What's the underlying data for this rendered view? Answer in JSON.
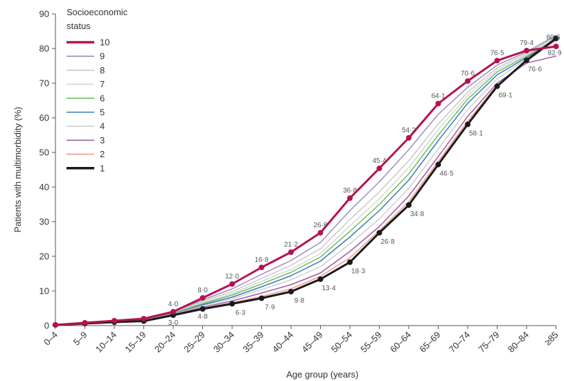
{
  "chart_data": {
    "type": "line",
    "title": "",
    "xlabel": "Age group (years)",
    "ylabel": "Patients with multimorbidity (%)",
    "ylim": [
      0,
      90
    ],
    "yticks": [
      "0",
      "10",
      "20",
      "30",
      "40",
      "50",
      "60",
      "70",
      "80",
      "90"
    ],
    "categories": [
      "0–4",
      "5–9",
      "10–14",
      "15–19",
      "20–24",
      "25–29",
      "30–34",
      "35–39",
      "40–44",
      "45–49",
      "50–54",
      "55–59",
      "60–64",
      "65–69",
      "70–74",
      "75–79",
      "80–84",
      "≥85"
    ],
    "legend": {
      "title": "Socioeconomic status",
      "title_lines": [
        "Socioeconomic",
        "status"
      ],
      "placement": "top-left"
    },
    "series": [
      {
        "name": "10",
        "color": "#b5124e",
        "values": [
          0.2,
          0.8,
          1.4,
          2.0,
          4.0,
          8.0,
          12.0,
          16.8,
          21.2,
          26.8,
          36.8,
          45.4,
          54.2,
          64.1,
          70.6,
          76.5,
          79.4,
          80.6
        ]
      },
      {
        "name": "9",
        "color": "#9b8cc4",
        "values": [
          0.2,
          0.8,
          1.4,
          2.0,
          4.0,
          7.4,
          10.6,
          14.8,
          18.8,
          24.0,
          33.2,
          41.5,
          50.8,
          61.0,
          68.8,
          75.2,
          79.0,
          83.8
        ]
      },
      {
        "name": "8",
        "color": "#c9c9c9",
        "values": [
          0.2,
          0.8,
          1.3,
          1.9,
          3.8,
          7.0,
          9.8,
          13.6,
          17.4,
          22.2,
          30.6,
          38.6,
          47.6,
          58.2,
          67.4,
          74.4,
          78.6,
          83.4
        ]
      },
      {
        "name": "7",
        "color": "#d6d6d6",
        "values": [
          0.2,
          0.8,
          1.3,
          1.8,
          3.7,
          6.6,
          9.2,
          12.8,
          16.2,
          20.8,
          28.8,
          36.6,
          45.6,
          56.6,
          66.4,
          73.8,
          78.2,
          83.0
        ]
      },
      {
        "name": "6",
        "color": "#6dbf5a",
        "values": [
          0.2,
          0.8,
          1.3,
          1.8,
          3.6,
          6.3,
          8.8,
          12.0,
          15.4,
          19.8,
          27.2,
          35.0,
          43.8,
          55.0,
          65.4,
          73.2,
          77.8,
          82.6
        ]
      },
      {
        "name": "5",
        "color": "#3b78b8",
        "values": [
          0.2,
          0.7,
          1.2,
          1.7,
          3.4,
          6.0,
          8.2,
          11.2,
          14.4,
          18.6,
          25.6,
          33.2,
          42.0,
          53.4,
          64.2,
          72.4,
          77.4,
          82.4
        ]
      },
      {
        "name": "4",
        "color": "#cfcfcf",
        "values": [
          0.2,
          0.7,
          1.2,
          1.6,
          3.3,
          5.7,
          7.7,
          10.4,
          13.2,
          17.0,
          23.6,
          30.8,
          39.6,
          51.0,
          62.4,
          71.2,
          77.0,
          82.2
        ]
      },
      {
        "name": "3",
        "color": "#a05aa8",
        "values": [
          0.2,
          0.7,
          1.1,
          1.5,
          3.2,
          5.3,
          7.1,
          9.4,
          11.8,
          15.2,
          21.4,
          28.6,
          37.4,
          48.8,
          60.4,
          70.0,
          75.8,
          77.8
        ]
      },
      {
        "name": "2",
        "color": "#ef9a88",
        "values": [
          0.2,
          0.7,
          1.1,
          1.4,
          3.1,
          5.0,
          6.6,
          8.4,
          10.6,
          14.2,
          19.6,
          27.4,
          35.8,
          47.4,
          59.0,
          69.4,
          76.2,
          82.6
        ]
      },
      {
        "name": "1",
        "color": "#1a1a1a",
        "values": [
          0.2,
          0.6,
          1.0,
          1.3,
          3.0,
          4.8,
          6.3,
          7.9,
          9.8,
          13.4,
          18.3,
          26.8,
          34.8,
          46.5,
          58.1,
          69.1,
          76.6,
          82.9
        ]
      }
    ],
    "data_labels": [
      {
        "series": "10",
        "index": 4,
        "text": "4·0"
      },
      {
        "series": "10",
        "index": 5,
        "text": "8·0"
      },
      {
        "series": "10",
        "index": 6,
        "text": "12·0"
      },
      {
        "series": "10",
        "index": 7,
        "text": "16·8"
      },
      {
        "series": "10",
        "index": 8,
        "text": "21·2"
      },
      {
        "series": "10",
        "index": 9,
        "text": "26·8"
      },
      {
        "series": "10",
        "index": 10,
        "text": "36·8"
      },
      {
        "series": "10",
        "index": 11,
        "text": "45·4"
      },
      {
        "series": "10",
        "index": 12,
        "text": "54·2"
      },
      {
        "series": "10",
        "index": 13,
        "text": "64·1"
      },
      {
        "series": "10",
        "index": 14,
        "text": "70·6"
      },
      {
        "series": "10",
        "index": 15,
        "text": "76·5"
      },
      {
        "series": "10",
        "index": 16,
        "text": "79·4"
      },
      {
        "series": "10",
        "index": 17,
        "text": "80·6"
      },
      {
        "series": "1",
        "index": 4,
        "text": "3·0"
      },
      {
        "series": "1",
        "index": 5,
        "text": "4·8"
      },
      {
        "series": "1",
        "index": 6,
        "text": "6·3"
      },
      {
        "series": "1",
        "index": 7,
        "text": "7·9"
      },
      {
        "series": "1",
        "index": 8,
        "text": "9·8"
      },
      {
        "series": "1",
        "index": 9,
        "text": "13·4"
      },
      {
        "series": "1",
        "index": 10,
        "text": "18·3"
      },
      {
        "series": "1",
        "index": 11,
        "text": "26·8"
      },
      {
        "series": "1",
        "index": 12,
        "text": "34·8"
      },
      {
        "series": "1",
        "index": 13,
        "text": "46·5"
      },
      {
        "series": "1",
        "index": 14,
        "text": "58·1"
      },
      {
        "series": "1",
        "index": 15,
        "text": "69·1"
      },
      {
        "series": "1",
        "index": 16,
        "text": "76·6"
      },
      {
        "series": "1",
        "index": 17,
        "text": "82·9"
      }
    ],
    "grid": false
  }
}
